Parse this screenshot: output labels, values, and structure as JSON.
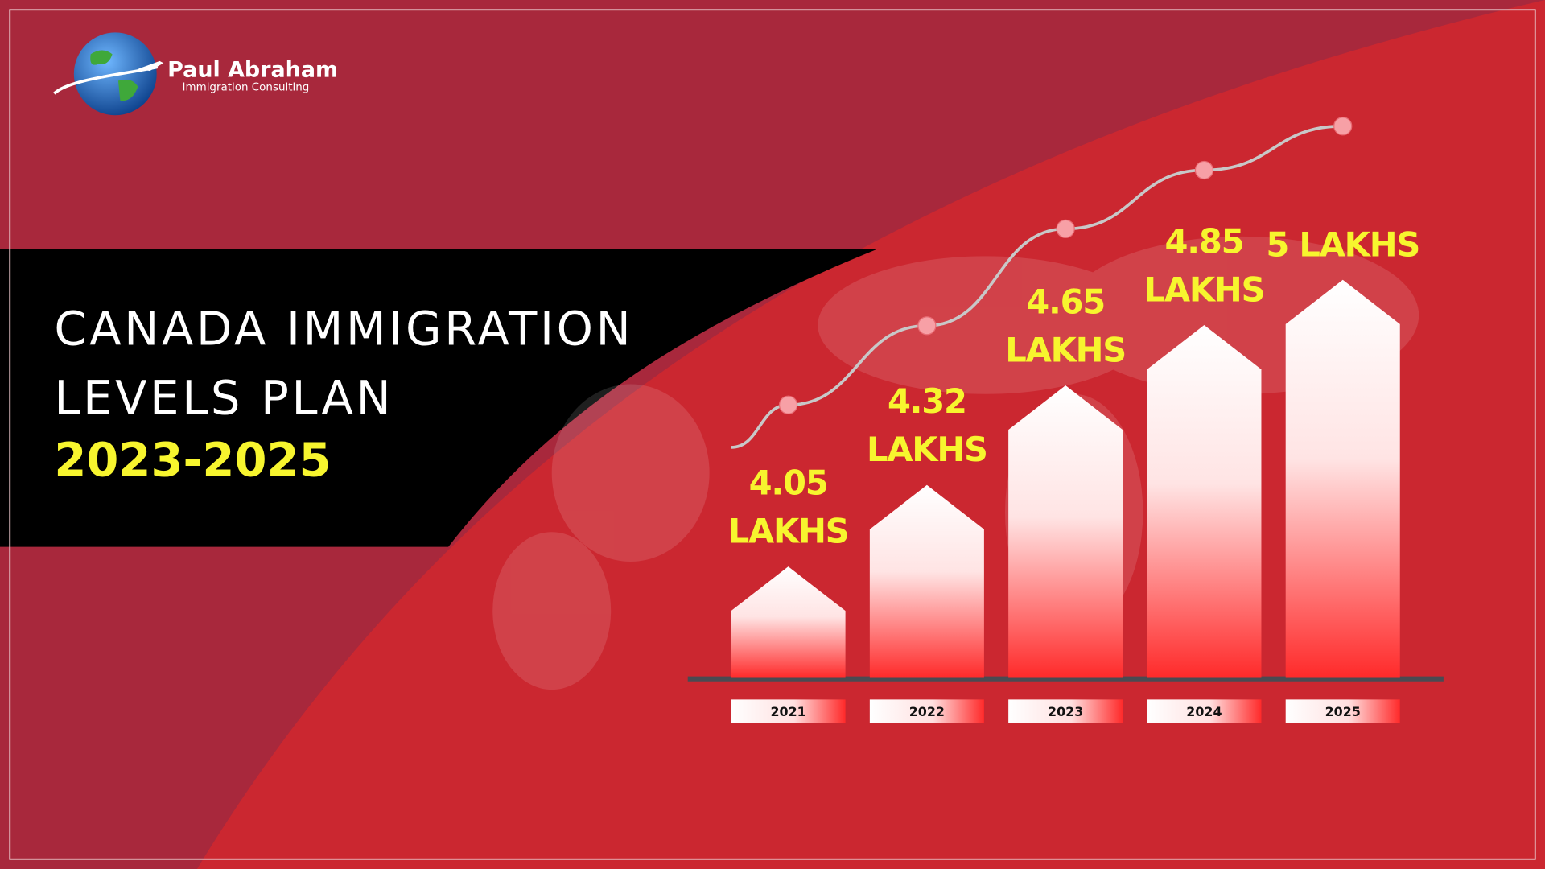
{
  "logo": {
    "name": "Paul Abraham",
    "tagline": "Immigration Consulting"
  },
  "chart_data": {
    "type": "bar",
    "title": "CANADA IMMIGRATION LEVELS PLAN",
    "subtitle": "2023-2025",
    "categories": [
      "2021",
      "2022",
      "2023",
      "2024",
      "2025"
    ],
    "values": [
      4.05,
      4.32,
      4.65,
      4.85,
      5
    ],
    "value_labels": [
      "4.05 LAKHS",
      "4.32 LAKHS",
      "4.65 LAKHS",
      "4.85 LAKHS",
      "5 LAKHS"
    ],
    "color": "#ff2a2a",
    "label_color": "#f7f52e",
    "line_color": "#c8c8c8"
  }
}
